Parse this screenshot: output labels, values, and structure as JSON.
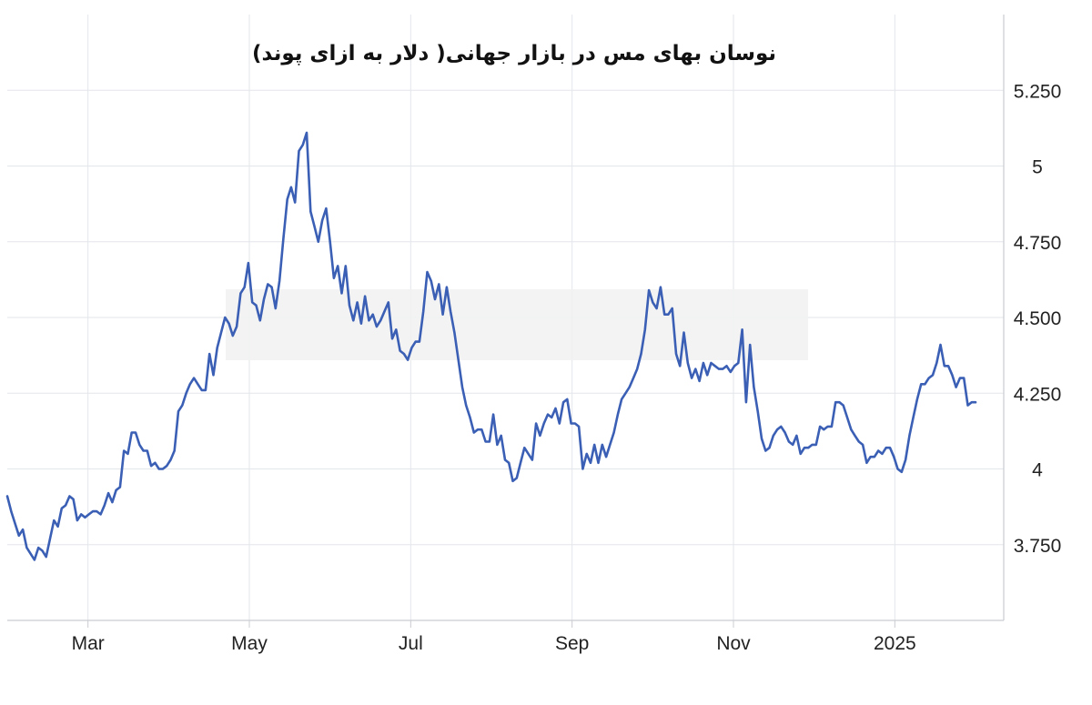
{
  "chart_data": {
    "type": "line",
    "title": "نوسان بهای مس در بازار جهانی( دلار به ازای پوند)",
    "xlabel": "",
    "ylabel": "",
    "x_ticks": [
      "Mar",
      "May",
      "Jul",
      "Sep",
      "Nov",
      "2025"
    ],
    "y_ticks": [
      "3.750",
      "4",
      "4.250",
      "4.500",
      "4.750",
      "5",
      "5.250"
    ],
    "ylim": [
      3.5,
      5.5
    ],
    "grid": true,
    "y_axis_position": "right",
    "series": [
      {
        "color": "#3a5fb4",
        "points": [
          [
            0,
            3.91
          ],
          [
            1,
            3.86
          ],
          [
            2,
            3.82
          ],
          [
            3,
            3.78
          ],
          [
            4,
            3.8
          ],
          [
            5,
            3.74
          ],
          [
            6,
            3.72
          ],
          [
            7,
            3.7
          ],
          [
            8,
            3.74
          ],
          [
            9,
            3.73
          ],
          [
            10,
            3.71
          ],
          [
            11,
            3.77
          ],
          [
            12,
            3.83
          ],
          [
            13,
            3.81
          ],
          [
            14,
            3.87
          ],
          [
            15,
            3.88
          ],
          [
            16,
            3.91
          ],
          [
            17,
            3.9
          ],
          [
            18,
            3.83
          ],
          [
            19,
            3.85
          ],
          [
            20,
            3.84
          ],
          [
            21,
            3.85
          ],
          [
            22,
            3.86
          ],
          [
            23,
            3.86
          ],
          [
            24,
            3.85
          ],
          [
            25,
            3.88
          ],
          [
            26,
            3.92
          ],
          [
            27,
            3.89
          ],
          [
            28,
            3.93
          ],
          [
            29,
            3.94
          ],
          [
            30,
            4.06
          ],
          [
            31,
            4.05
          ],
          [
            32,
            4.12
          ],
          [
            33,
            4.12
          ],
          [
            34,
            4.08
          ],
          [
            35,
            4.06
          ],
          [
            36,
            4.06
          ],
          [
            37,
            4.01
          ],
          [
            38,
            4.02
          ],
          [
            39,
            4.0
          ],
          [
            40,
            4.0
          ],
          [
            41,
            4.01
          ],
          [
            42,
            4.03
          ],
          [
            43,
            4.06
          ],
          [
            44,
            4.19
          ],
          [
            45,
            4.21
          ],
          [
            46,
            4.25
          ],
          [
            47,
            4.28
          ],
          [
            48,
            4.3
          ],
          [
            49,
            4.28
          ],
          [
            50,
            4.26
          ],
          [
            51,
            4.26
          ],
          [
            52,
            4.38
          ],
          [
            53,
            4.31
          ],
          [
            54,
            4.4
          ],
          [
            55,
            4.45
          ],
          [
            56,
            4.5
          ],
          [
            57,
            4.48
          ],
          [
            58,
            4.44
          ],
          [
            59,
            4.47
          ],
          [
            60,
            4.58
          ],
          [
            61,
            4.6
          ],
          [
            62,
            4.68
          ],
          [
            63,
            4.55
          ],
          [
            64,
            4.54
          ],
          [
            65,
            4.49
          ],
          [
            66,
            4.56
          ],
          [
            67,
            4.61
          ],
          [
            68,
            4.6
          ],
          [
            69,
            4.53
          ],
          [
            70,
            4.62
          ],
          [
            71,
            4.76
          ],
          [
            72,
            4.89
          ],
          [
            73,
            4.93
          ],
          [
            74,
            4.88
          ],
          [
            75,
            5.05
          ],
          [
            76,
            5.07
          ],
          [
            77,
            5.11
          ],
          [
            78,
            4.85
          ],
          [
            79,
            4.8
          ],
          [
            80,
            4.75
          ],
          [
            81,
            4.82
          ],
          [
            82,
            4.86
          ],
          [
            83,
            4.75
          ],
          [
            84,
            4.63
          ],
          [
            85,
            4.67
          ],
          [
            86,
            4.58
          ],
          [
            87,
            4.67
          ],
          [
            88,
            4.54
          ],
          [
            89,
            4.49
          ],
          [
            90,
            4.55
          ],
          [
            91,
            4.48
          ],
          [
            92,
            4.57
          ],
          [
            93,
            4.49
          ],
          [
            94,
            4.51
          ],
          [
            95,
            4.47
          ],
          [
            96,
            4.49
          ],
          [
            97,
            4.52
          ],
          [
            98,
            4.55
          ],
          [
            99,
            4.43
          ],
          [
            100,
            4.46
          ],
          [
            101,
            4.39
          ],
          [
            102,
            4.38
          ],
          [
            103,
            4.36
          ],
          [
            104,
            4.4
          ],
          [
            105,
            4.42
          ],
          [
            106,
            4.42
          ],
          [
            107,
            4.52
          ],
          [
            108,
            4.65
          ],
          [
            109,
            4.62
          ],
          [
            110,
            4.56
          ],
          [
            111,
            4.61
          ],
          [
            112,
            4.51
          ],
          [
            113,
            4.6
          ],
          [
            114,
            4.52
          ],
          [
            115,
            4.45
          ],
          [
            116,
            4.36
          ],
          [
            117,
            4.27
          ],
          [
            118,
            4.21
          ],
          [
            119,
            4.17
          ],
          [
            120,
            4.12
          ],
          [
            121,
            4.13
          ],
          [
            122,
            4.13
          ],
          [
            123,
            4.09
          ],
          [
            124,
            4.09
          ],
          [
            125,
            4.18
          ],
          [
            126,
            4.08
          ],
          [
            127,
            4.11
          ],
          [
            128,
            4.03
          ],
          [
            129,
            4.02
          ],
          [
            130,
            3.96
          ],
          [
            131,
            3.97
          ],
          [
            132,
            4.02
          ],
          [
            133,
            4.07
          ],
          [
            134,
            4.05
          ],
          [
            135,
            4.03
          ],
          [
            136,
            4.15
          ],
          [
            137,
            4.11
          ],
          [
            138,
            4.15
          ],
          [
            139,
            4.18
          ],
          [
            140,
            4.17
          ],
          [
            141,
            4.2
          ],
          [
            142,
            4.15
          ],
          [
            143,
            4.22
          ],
          [
            144,
            4.23
          ],
          [
            145,
            4.15
          ],
          [
            146,
            4.15
          ],
          [
            147,
            4.14
          ],
          [
            148,
            4.0
          ],
          [
            149,
            4.05
          ],
          [
            150,
            4.02
          ],
          [
            151,
            4.08
          ],
          [
            152,
            4.02
          ],
          [
            153,
            4.08
          ],
          [
            154,
            4.04
          ],
          [
            155,
            4.08
          ],
          [
            156,
            4.12
          ],
          [
            157,
            4.18
          ],
          [
            158,
            4.23
          ],
          [
            159,
            4.25
          ],
          [
            160,
            4.27
          ],
          [
            161,
            4.3
          ],
          [
            162,
            4.33
          ],
          [
            163,
            4.38
          ],
          [
            164,
            4.46
          ],
          [
            165,
            4.59
          ],
          [
            166,
            4.55
          ],
          [
            167,
            4.53
          ],
          [
            168,
            4.6
          ],
          [
            169,
            4.51
          ],
          [
            170,
            4.51
          ],
          [
            171,
            4.53
          ],
          [
            172,
            4.38
          ],
          [
            173,
            4.34
          ],
          [
            174,
            4.45
          ],
          [
            175,
            4.35
          ],
          [
            176,
            4.3
          ],
          [
            177,
            4.33
          ],
          [
            178,
            4.29
          ],
          [
            179,
            4.35
          ],
          [
            180,
            4.31
          ],
          [
            181,
            4.35
          ],
          [
            182,
            4.34
          ],
          [
            183,
            4.33
          ],
          [
            184,
            4.33
          ],
          [
            185,
            4.34
          ],
          [
            186,
            4.32
          ],
          [
            187,
            4.34
          ],
          [
            188,
            4.35
          ],
          [
            189,
            4.46
          ],
          [
            190,
            4.22
          ],
          [
            191,
            4.41
          ],
          [
            192,
            4.27
          ],
          [
            193,
            4.19
          ],
          [
            194,
            4.1
          ],
          [
            195,
            4.06
          ],
          [
            196,
            4.07
          ],
          [
            197,
            4.11
          ],
          [
            198,
            4.13
          ],
          [
            199,
            4.14
          ],
          [
            200,
            4.12
          ],
          [
            201,
            4.09
          ],
          [
            202,
            4.08
          ],
          [
            203,
            4.11
          ],
          [
            204,
            4.05
          ],
          [
            205,
            4.07
          ],
          [
            206,
            4.07
          ],
          [
            207,
            4.08
          ],
          [
            208,
            4.08
          ],
          [
            209,
            4.14
          ],
          [
            210,
            4.13
          ],
          [
            211,
            4.14
          ],
          [
            212,
            4.14
          ],
          [
            213,
            4.22
          ],
          [
            214,
            4.22
          ],
          [
            215,
            4.21
          ],
          [
            216,
            4.17
          ],
          [
            217,
            4.13
          ],
          [
            218,
            4.11
          ],
          [
            219,
            4.09
          ],
          [
            220,
            4.08
          ],
          [
            221,
            4.02
          ],
          [
            222,
            4.04
          ],
          [
            223,
            4.04
          ],
          [
            224,
            4.06
          ],
          [
            225,
            4.05
          ],
          [
            226,
            4.07
          ],
          [
            227,
            4.07
          ],
          [
            228,
            4.04
          ],
          [
            229,
            4.0
          ],
          [
            230,
            3.99
          ],
          [
            231,
            4.03
          ],
          [
            232,
            4.11
          ],
          [
            233,
            4.17
          ],
          [
            234,
            4.23
          ],
          [
            235,
            4.28
          ],
          [
            236,
            4.28
          ],
          [
            237,
            4.3
          ],
          [
            238,
            4.31
          ],
          [
            239,
            4.35
          ],
          [
            240,
            4.41
          ],
          [
            241,
            4.34
          ],
          [
            242,
            4.34
          ],
          [
            243,
            4.31
          ],
          [
            244,
            4.27
          ],
          [
            245,
            4.3
          ],
          [
            246,
            4.3
          ],
          [
            247,
            4.21
          ],
          [
            248,
            4.22
          ],
          [
            249,
            4.22
          ]
        ]
      }
    ]
  }
}
